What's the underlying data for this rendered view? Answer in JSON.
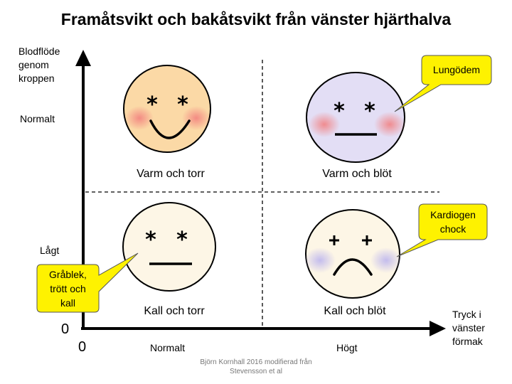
{
  "title": "Framåtsvikt och bakåtsvikt från vänster hjärthalva",
  "y_axis": {
    "label_lines": [
      "Blodflöde",
      "genom",
      "kroppen"
    ],
    "ticks": [
      "Normalt",
      "Lågt"
    ],
    "zero": "0"
  },
  "x_axis": {
    "label_lines": [
      "Tryck i",
      "vänster",
      "förmak"
    ],
    "ticks": [
      "Normalt",
      "Högt"
    ],
    "zero": "0"
  },
  "quadrants": {
    "top_left": "Varm och torr",
    "top_right": "Varm och blöt",
    "bottom_left": "Kall och torr",
    "bottom_right": "Kall och blöt"
  },
  "callouts": {
    "lungodem": [
      "Lungödem"
    ],
    "kardiogen": [
      "Kardiogen",
      "chock"
    ],
    "grablek": [
      "Gråblek,",
      "trött och",
      "kall"
    ]
  },
  "credit_lines": [
    "Björn Kornhall 2016 modifierad från",
    "Stevensson et al"
  ],
  "colors": {
    "warm_face": "#fbd9a6",
    "blue_face": "#e3def5",
    "cold_face": "#fdf6e6",
    "callout_fill": "#fef200",
    "cheek_red": "#f48a8a",
    "cheek_blue": "#c9c3f0"
  },
  "icons": {
    "eye_dry": "asterisk",
    "eye_wet": "plus"
  }
}
